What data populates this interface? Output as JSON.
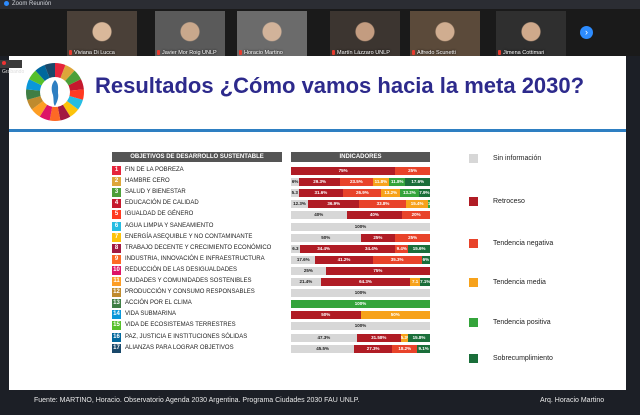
{
  "window": {
    "title": "Zoom Reunión"
  },
  "participants": [
    {
      "name": "Viviana Di Lucca",
      "muted": true
    },
    {
      "name": "Javier Mor Roig UNLP",
      "muted": true
    },
    {
      "name": "Horacio Martino",
      "muted": true
    },
    {
      "name": "Martín Lázzaro UNLP",
      "muted": true
    },
    {
      "name": "Alfredo Scunetti",
      "muted": true
    },
    {
      "name": "Jimena Cottimari",
      "muted": true
    }
  ],
  "recording": {
    "label": "Grabando"
  },
  "next_icon": "chevron-right-icon",
  "slide": {
    "title": "Resultados ¿Cómo vamos hacia la meta 2030?",
    "col_objectives": "OBJETIVOS DE DESARROLLO SUSTENTABLE",
    "col_indicators": "INDICADORES",
    "objectives": [
      {
        "num": "1",
        "label": "FIN DE LA POBREZA",
        "color": "#e5243b",
        "segments": [
          {
            "cat": "retroceso",
            "value": 75,
            "label": "75%"
          },
          {
            "cat": "negativa",
            "value": 25,
            "label": "25%"
          }
        ]
      },
      {
        "num": "2",
        "label": "HAMBRE CERO",
        "color": "#dda63a",
        "segments": [
          {
            "cat": "sin",
            "value": 6,
            "label": "6%"
          },
          {
            "cat": "retroceso",
            "value": 29.3,
            "label": "29.3%"
          },
          {
            "cat": "negativa",
            "value": 23.5,
            "label": "23.5%"
          },
          {
            "cat": "media",
            "value": 11.8,
            "label": "11.8%"
          },
          {
            "cat": "positiva",
            "value": 11.8,
            "label": "11.8%"
          },
          {
            "cat": "sobre",
            "value": 17.6,
            "label": "17.6%"
          }
        ]
      },
      {
        "num": "3",
        "label": "SALUD Y BIENESTAR",
        "color": "#4c9f38",
        "segments": [
          {
            "cat": "sin",
            "value": 5.3,
            "label": "5.3"
          },
          {
            "cat": "retroceso",
            "value": 31.6,
            "label": "31.6%"
          },
          {
            "cat": "negativa",
            "value": 26.9,
            "label": "26.9%"
          },
          {
            "cat": "media",
            "value": 13.2,
            "label": "13.2%"
          },
          {
            "cat": "positiva",
            "value": 13.2,
            "label": "13.2%"
          },
          {
            "cat": "sobre",
            "value": 7.9,
            "label": "7.9%"
          }
        ]
      },
      {
        "num": "4",
        "label": "EDUCACIÓN DE CALIDAD",
        "color": "#c5192d",
        "segments": [
          {
            "cat": "sin",
            "value": 12.3,
            "label": "12.3%"
          },
          {
            "cat": "retroceso",
            "value": 36.9,
            "label": "36.9%"
          },
          {
            "cat": "negativa",
            "value": 33.8,
            "label": "33.8%"
          },
          {
            "cat": "media",
            "value": 15.4,
            "label": "15.4%"
          },
          {
            "cat": "positiva",
            "value": 1.5,
            "label": "1.5%"
          }
        ]
      },
      {
        "num": "5",
        "label": "IGUALDAD DE GÉNERO",
        "color": "#ff3a21",
        "segments": [
          {
            "cat": "sin",
            "value": 40,
            "label": "40%"
          },
          {
            "cat": "retroceso",
            "value": 40,
            "label": "40%"
          },
          {
            "cat": "negativa",
            "value": 20,
            "label": "20%"
          }
        ]
      },
      {
        "num": "6",
        "label": "AGUA LIMPIA Y SANEAMIENTO",
        "color": "#26bde2",
        "segments": [
          {
            "cat": "sin",
            "value": 100,
            "label": "100%"
          }
        ]
      },
      {
        "num": "7",
        "label": "ENERGÍA ASEQUIBLE Y NO CONTAMINANTE",
        "color": "#fcc30b",
        "segments": [
          {
            "cat": "sin",
            "value": 50,
            "label": "50%"
          },
          {
            "cat": "retroceso",
            "value": 25,
            "label": "25%"
          },
          {
            "cat": "negativa",
            "value": 25,
            "label": "25%"
          }
        ]
      },
      {
        "num": "8",
        "label": "TRABAJO DECENTE Y CRECIMIENTO ECONÓMICO",
        "color": "#a21942",
        "segments": [
          {
            "cat": "sin",
            "value": 6.3,
            "label": "6.3"
          },
          {
            "cat": "retroceso",
            "value": 34.4,
            "label": "34.4%"
          },
          {
            "cat": "retroceso",
            "value": 34.4,
            "label": "34.4%"
          },
          {
            "cat": "negativa",
            "value": 9.4,
            "label": "9.4%"
          },
          {
            "cat": "sobre",
            "value": 15.6,
            "label": "15.6%"
          }
        ]
      },
      {
        "num": "9",
        "label": "INDUSTRIA, INNOVACIÓN E INFRAESTRUCTURA",
        "color": "#fd6925",
        "segments": [
          {
            "cat": "sin",
            "value": 17.6,
            "label": "17.6%"
          },
          {
            "cat": "retroceso",
            "value": 41.2,
            "label": "41.2%"
          },
          {
            "cat": "negativa",
            "value": 35.3,
            "label": "35.3%"
          },
          {
            "cat": "sobre",
            "value": 6,
            "label": "6%"
          }
        ]
      },
      {
        "num": "10",
        "label": "REDUCCIÓN DE LAS DESIGUALDADES",
        "color": "#dd1367",
        "segments": [
          {
            "cat": "sin",
            "value": 25,
            "label": "25%"
          },
          {
            "cat": "retroceso",
            "value": 75,
            "label": "75%"
          }
        ]
      },
      {
        "num": "11",
        "label": "CIUDADES Y COMUNIDADES SOSTENIBLES",
        "color": "#fd9d24",
        "segments": [
          {
            "cat": "sin",
            "value": 21.4,
            "label": "21.4%"
          },
          {
            "cat": "retroceso",
            "value": 64.3,
            "label": "64.3%"
          },
          {
            "cat": "media",
            "value": 7.1,
            "label": "7.1"
          },
          {
            "cat": "sobre",
            "value": 7.1,
            "label": "7.1%"
          }
        ]
      },
      {
        "num": "12",
        "label": "PRODUCCIÓN Y CONSUMO RESPONSABLES",
        "color": "#bf8b2e",
        "segments": [
          {
            "cat": "sin",
            "value": 100,
            "label": "100%"
          }
        ]
      },
      {
        "num": "13",
        "label": "ACCIÓN POR EL CLIMA",
        "color": "#3f7e44",
        "segments": [
          {
            "cat": "positiva",
            "value": 100,
            "label": "100%"
          }
        ]
      },
      {
        "num": "14",
        "label": "VIDA SUBMARINA",
        "color": "#0a97d9",
        "segments": [
          {
            "cat": "retroceso",
            "value": 50,
            "label": "50%"
          },
          {
            "cat": "media",
            "value": 50,
            "label": "50%"
          }
        ]
      },
      {
        "num": "15",
        "label": "VIDA DE ECOSISTEMAS TERRESTRES",
        "color": "#56c02b",
        "segments": [
          {
            "cat": "sin",
            "value": 100,
            "label": "100%"
          }
        ]
      },
      {
        "num": "16",
        "label": "PAZ, JUSTICIA E INSTITUCIONES SÓLIDAS",
        "color": "#00689d",
        "segments": [
          {
            "cat": "sin",
            "value": 47.3,
            "label": "47.3%"
          },
          {
            "cat": "retroceso",
            "value": 31.58,
            "label": "31.58%"
          },
          {
            "cat": "media",
            "value": 5.3,
            "label": "5.3%"
          },
          {
            "cat": "sobre",
            "value": 15.8,
            "label": "15.8%"
          }
        ]
      },
      {
        "num": "17",
        "label": "ALIANZAS PARA LOGRAR OBJETIVOS",
        "color": "#19486a",
        "segments": [
          {
            "cat": "sin",
            "value": 45.5,
            "label": "45.5%"
          },
          {
            "cat": "retroceso",
            "value": 27.3,
            "label": "27.3%"
          },
          {
            "cat": "negativa",
            "value": 18.2,
            "label": "18.2%"
          },
          {
            "cat": "sobre",
            "value": 9.1,
            "label": "9.1%"
          }
        ]
      }
    ],
    "legend": [
      {
        "key": "sin",
        "label": "Sin información",
        "color": "#d7d7d7"
      },
      {
        "key": "retroceso",
        "label": "Retroceso",
        "color": "#b01c25"
      },
      {
        "key": "negativa",
        "label": "Tendencia negativa",
        "color": "#e8432a"
      },
      {
        "key": "media",
        "label": "Tendencia media",
        "color": "#f7a21b"
      },
      {
        "key": "positiva",
        "label": "Tendencia positiva",
        "color": "#34a43b"
      },
      {
        "key": "sobre",
        "label": "Sobrecumplimiento",
        "color": "#1a6e3a"
      }
    ]
  },
  "footer": {
    "source": "Fuente: MARTINO, Horacio. Observatorio Agenda 2030 Argentina. Programa Ciudades 2030 FAU UNLP.",
    "author": "Arq. Horacio Martino"
  }
}
